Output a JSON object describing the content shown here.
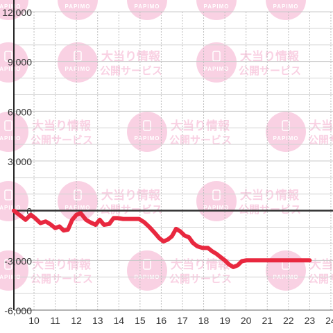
{
  "watermark": {
    "line1": "大当り情報",
    "line2": "公開サービス",
    "logo_text": "PAPIMO",
    "color": "#f9c9df"
  },
  "chart_data": {
    "type": "line",
    "title": "",
    "xlabel": "",
    "ylabel": "",
    "x_ticks": [
      "10",
      "11",
      "12",
      "13",
      "14",
      "15",
      "16",
      "17",
      "18",
      "19",
      "20",
      "21",
      "22",
      "23",
      "24"
    ],
    "y_ticks": [
      "12,000",
      "9,000",
      "6,000",
      "3,000",
      "0",
      "-3,000",
      "-6,000"
    ],
    "xlim": [
      9.05,
      24.1
    ],
    "ylim": [
      -6000,
      12000
    ],
    "grid": true,
    "line_color": "#e8283f",
    "series": [
      {
        "name": "",
        "x": [
          9.05,
          9.35,
          9.6,
          9.85,
          10.05,
          10.3,
          10.55,
          10.75,
          11.0,
          11.2,
          11.4,
          11.6,
          11.8,
          12.0,
          12.2,
          12.45,
          12.65,
          12.9,
          13.1,
          13.3,
          13.55,
          13.75,
          13.95,
          14.2,
          14.45,
          14.7,
          14.95,
          15.2,
          15.45,
          15.7,
          15.9,
          16.1,
          16.3,
          16.5,
          16.7,
          16.9,
          17.1,
          17.3,
          17.5,
          17.7,
          17.95,
          18.2,
          18.4,
          18.6,
          18.8,
          19.0,
          19.2,
          19.4,
          19.6,
          19.8,
          20.0,
          20.2,
          20.4,
          20.6,
          20.8,
          21.0,
          21.2,
          21.5,
          21.8,
          22.1,
          22.4,
          22.7,
          23.0
        ],
        "y": [
          0,
          -300,
          -550,
          -250,
          -450,
          -750,
          -650,
          -800,
          -1050,
          -950,
          -1200,
          -1150,
          -550,
          -250,
          -150,
          -550,
          -700,
          -850,
          -550,
          -850,
          -800,
          -450,
          -450,
          -500,
          -500,
          -500,
          -500,
          -700,
          -1000,
          -1350,
          -1650,
          -1850,
          -1750,
          -1550,
          -1100,
          -1250,
          -1500,
          -1600,
          -1950,
          -2150,
          -2250,
          -2250,
          -2450,
          -2600,
          -2800,
          -3000,
          -3250,
          -3400,
          -3300,
          -3050,
          -3000,
          -3000,
          -3000,
          -3000,
          -3000,
          -3000,
          -3000,
          -3000,
          -3000,
          -3000,
          -3000,
          -3000,
          -3000
        ]
      }
    ]
  }
}
